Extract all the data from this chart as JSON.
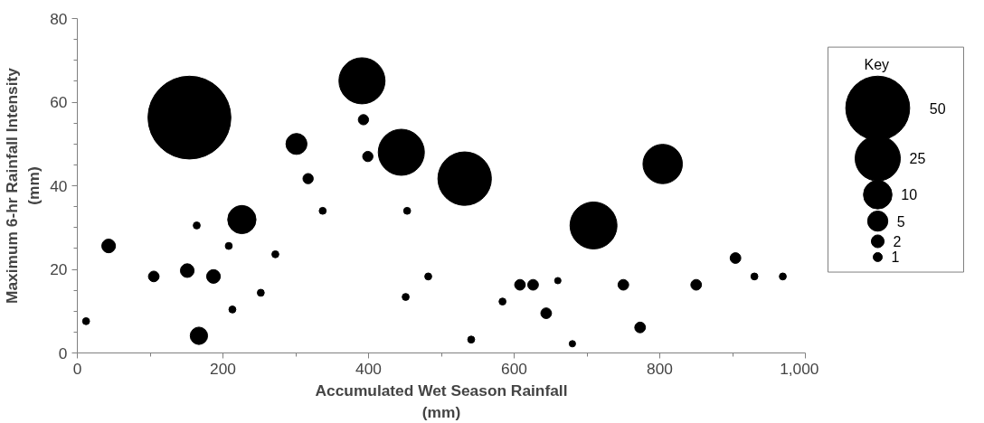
{
  "chart_data": {
    "type": "bubble",
    "xlabel": "Accumulated Wet Season Rainfall\n(mm)",
    "ylabel": "Maximum 6-hr Rainfall Intensity\n(mm)",
    "legend_title": "Key",
    "x": [
      12,
      43,
      105,
      151,
      154,
      164,
      187,
      167,
      208,
      213,
      226,
      252,
      272,
      301,
      317,
      337,
      391,
      393,
      399,
      445,
      453,
      451,
      482,
      532,
      541,
      584,
      608,
      626,
      660,
      644,
      680,
      709,
      750,
      773,
      804,
      850,
      904,
      930,
      969
    ],
    "values": [
      7.6,
      25.6,
      18.3,
      19.7,
      56.3,
      30.5,
      18.3,
      4.1,
      25.6,
      10.4,
      31.9,
      14.4,
      23.6,
      50,
      41.7,
      34,
      65.1,
      55.8,
      47,
      48,
      34,
      13.4,
      18.3,
      41.7,
      3.2,
      12.3,
      16.3,
      16.3,
      17.3,
      9.5,
      2.2,
      30.5,
      16.3,
      6.1,
      45.2,
      16.3,
      22.7,
      18.3,
      18.3
    ],
    "sizes": [
      0.6,
      2.3,
      1.4,
      2.3,
      84,
      0.6,
      2.3,
      3.7,
      0.6,
      0.6,
      9.8,
      0.6,
      0.6,
      5.4,
      1.3,
      0.6,
      26,
      1.3,
      1.3,
      26,
      0.6,
      0.6,
      0.6,
      35,
      0.6,
      0.6,
      1.4,
      1.4,
      0.5,
      1.4,
      0.5,
      27,
      1.4,
      1.4,
      19,
      1.4,
      1.4,
      0.6,
      0.6
    ],
    "size_legend": [
      50,
      25,
      10,
      5,
      2,
      1
    ],
    "color": "#000000",
    "xlim": [
      0,
      1000
    ],
    "ylim": [
      0,
      80
    ],
    "xticks": [
      0,
      200,
      400,
      600,
      800,
      {
        "value": 1000,
        "label": "1,000"
      }
    ],
    "yticks": [
      0,
      20,
      40,
      60,
      80
    ],
    "grid": false
  }
}
